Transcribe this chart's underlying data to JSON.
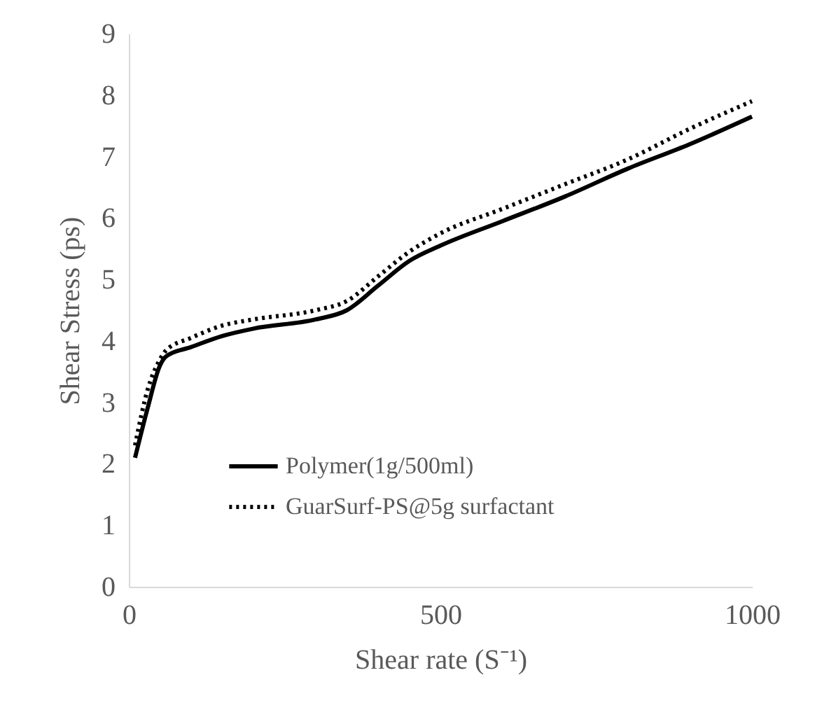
{
  "chart_data": {
    "type": "line",
    "xlabel": "Shear rate (S⁻¹)",
    "ylabel": "Shear Stress (ps)",
    "xlim": [
      0,
      1000
    ],
    "xticks": [
      0,
      500,
      1000
    ],
    "ylim": [
      0,
      9
    ],
    "yticks": [
      0,
      1,
      2,
      3,
      4,
      5,
      6,
      7,
      8,
      9
    ],
    "grid": false,
    "legend": "left",
    "marker": "none",
    "series": [
      {
        "name": "Polymer(1g/500ml)",
        "color": "#000000",
        "line_style": "solid",
        "x": [
          10,
          30,
          50,
          60,
          100,
          150,
          200,
          300,
          350,
          400,
          450,
          500,
          600,
          700,
          800,
          900,
          1000
        ],
        "values": [
          2.1,
          2.9,
          3.6,
          3.75,
          3.9,
          4.08,
          4.2,
          4.35,
          4.5,
          4.9,
          5.3,
          5.55,
          5.95,
          6.35,
          6.8,
          7.2,
          7.65
        ]
      },
      {
        "name": "GuarSurf-PS@5g surfactant",
        "color": "#000000",
        "line_style": "dotted",
        "x": [
          10,
          30,
          50,
          60,
          100,
          150,
          200,
          300,
          350,
          400,
          450,
          500,
          600,
          700,
          800,
          900,
          1000
        ],
        "values": [
          2.3,
          3.2,
          3.7,
          3.85,
          4.05,
          4.25,
          4.35,
          4.5,
          4.65,
          5.05,
          5.45,
          5.75,
          6.15,
          6.55,
          6.95,
          7.45,
          7.9
        ]
      }
    ]
  }
}
